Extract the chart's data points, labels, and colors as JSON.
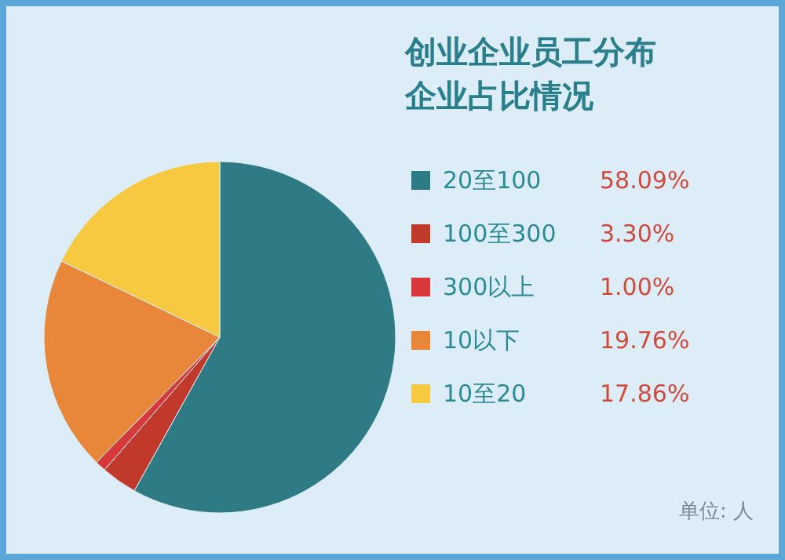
{
  "chart_data": {
    "type": "pie",
    "title": "创业企业员工分布",
    "subtitle": "企业占比情况",
    "categories": [
      "20至100",
      "100至300",
      "300以上",
      "10以下",
      "10至20"
    ],
    "values": [
      58.09,
      3.3,
      1.0,
      19.76,
      17.86
    ],
    "value_labels": [
      "58.09%",
      "3.30%",
      "1.00%",
      "19.76%",
      "17.86%"
    ],
    "colors": [
      "#2f7b85",
      "#c0392b",
      "#d8383a",
      "#e8873a",
      "#f6c941"
    ],
    "legend": "right",
    "annotations": [
      "单位: 人"
    ]
  }
}
